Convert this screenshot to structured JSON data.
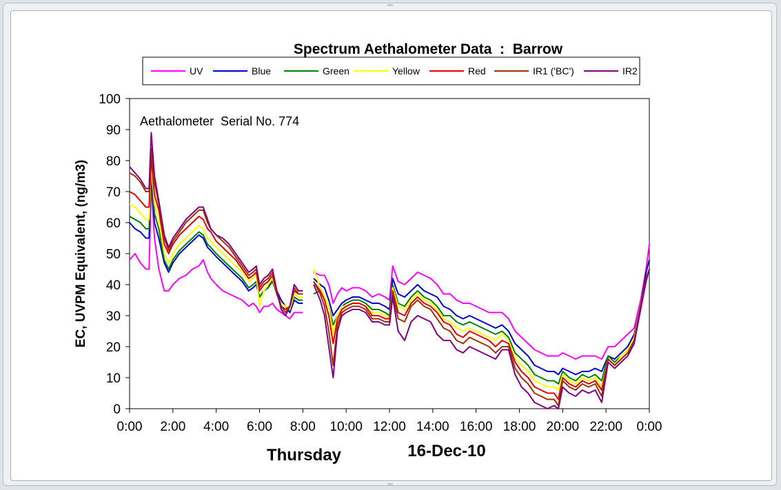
{
  "chart_data": {
    "type": "line",
    "title": "Spectrum Aethalometer Data  :  Barrow",
    "annotation": "Aethalometer  Serial No. 774",
    "ylabel": "EC, UVPM Equivalent, (ng/m3)",
    "day_label": "Thursday",
    "date_label": "16-Dec-10",
    "ylim": [
      0,
      100
    ],
    "y_ticks": [
      "0",
      "10",
      "20",
      "30",
      "40",
      "50",
      "60",
      "70",
      "80",
      "90",
      "100"
    ],
    "xlim": [
      0,
      24
    ],
    "x_ticks": [
      "0:00",
      "2:00",
      "4:00",
      "6:00",
      "8:00",
      "10:00",
      "12:00",
      "14:00",
      "16:00",
      "18:00",
      "20:00",
      "22:00",
      "0:00"
    ],
    "grid": false,
    "legend_position": "top",
    "x": [
      0,
      0.25,
      0.5,
      0.75,
      0.9,
      1.0,
      1.15,
      1.35,
      1.6,
      1.8,
      2.0,
      2.3,
      2.6,
      2.9,
      3.2,
      3.4,
      3.6,
      3.75,
      4.0,
      4.3,
      4.6,
      4.9,
      5.2,
      5.5,
      5.7,
      5.85,
      6.0,
      6.2,
      6.4,
      6.6,
      6.8,
      7.0,
      7.2,
      7.4,
      7.6,
      7.8,
      8.0,
      null,
      8.5,
      8.8,
      9.0,
      9.2,
      9.4,
      9.6,
      9.8,
      10.0,
      10.3,
      10.6,
      10.9,
      11.2,
      11.5,
      11.8,
      12.0,
      12.15,
      12.4,
      12.7,
      13.0,
      13.3,
      13.6,
      13.9,
      14.2,
      14.5,
      14.8,
      15.1,
      15.4,
      15.7,
      16.0,
      16.3,
      16.6,
      16.9,
      17.2,
      17.5,
      17.8,
      18.1,
      18.4,
      18.7,
      19.0,
      19.3,
      19.6,
      19.8,
      20.0,
      20.3,
      20.6,
      20.9,
      21.2,
      21.5,
      21.8,
      22.1,
      22.4,
      22.7,
      23.0,
      23.3,
      23.6,
      23.85,
      24.0
    ],
    "series": [
      {
        "name": "UV",
        "color": "#ff00ff",
        "values": [
          48,
          50,
          47,
          45,
          45,
          72,
          55,
          45,
          38,
          38,
          40,
          42,
          43,
          45,
          46,
          48,
          44,
          42,
          40,
          38,
          37,
          36,
          35,
          33,
          34,
          33,
          31,
          33,
          33,
          34,
          32,
          31,
          30,
          29,
          31,
          31,
          31,
          null,
          44,
          43,
          43,
          40,
          34,
          37,
          39,
          38,
          39,
          39,
          38,
          36,
          37,
          36,
          35,
          46,
          41,
          40,
          42,
          44,
          43,
          42,
          40,
          37,
          37,
          35,
          34,
          34,
          33,
          32,
          31,
          31,
          31,
          29,
          25,
          23,
          21,
          19,
          18,
          17,
          17,
          17,
          18,
          17,
          16,
          17,
          17,
          17,
          16,
          20,
          20,
          22,
          24,
          26,
          35,
          45,
          53
        ]
      },
      {
        "name": "Blue",
        "color": "#0000cc",
        "values": [
          60,
          58,
          57,
          55,
          55,
          75,
          60,
          55,
          47,
          44,
          47,
          50,
          52,
          54,
          56,
          55,
          52,
          51,
          49,
          47,
          45,
          43,
          41,
          38,
          39,
          40,
          36,
          38,
          39,
          42,
          38,
          35,
          33,
          31,
          35,
          34,
          34,
          null,
          42,
          40,
          39,
          35,
          30,
          32,
          34,
          35,
          36,
          36,
          35,
          34,
          34,
          33,
          32,
          42,
          37,
          36,
          38,
          40,
          38,
          37,
          36,
          33,
          32,
          30,
          29,
          30,
          29,
          28,
          27,
          26,
          27,
          25,
          21,
          19,
          17,
          14,
          13,
          12,
          12,
          11,
          13,
          12,
          11,
          12,
          12,
          13,
          12,
          17,
          16,
          18,
          20,
          24,
          33,
          44,
          48
        ]
      },
      {
        "name": "Green",
        "color": "#008000",
        "values": [
          62,
          61,
          60,
          58,
          58,
          77,
          63,
          58,
          48,
          45,
          48,
          51,
          53,
          55,
          57,
          56,
          53,
          52,
          50,
          48,
          46,
          44,
          42,
          39,
          40,
          41,
          36,
          38,
          39,
          41,
          37,
          34,
          33,
          32,
          36,
          35,
          35,
          null,
          37,
          38,
          36,
          33,
          27,
          30,
          33,
          34,
          35,
          35,
          34,
          32,
          32,
          31,
          30,
          40,
          34,
          33,
          36,
          38,
          36,
          35,
          33,
          30,
          30,
          28,
          27,
          28,
          27,
          26,
          25,
          24,
          25,
          23,
          18,
          16,
          14,
          11,
          10,
          9,
          9,
          8,
          12,
          10,
          9,
          11,
          10,
          11,
          9,
          17,
          15,
          17,
          19,
          23,
          33,
          42,
          45
        ]
      },
      {
        "name": "Yellow",
        "color": "#ffff00",
        "values": [
          66,
          65,
          63,
          61,
          61,
          79,
          66,
          61,
          50,
          47,
          50,
          53,
          55,
          57,
          59,
          58,
          55,
          54,
          52,
          50,
          48,
          46,
          44,
          41,
          42,
          43,
          33,
          38,
          40,
          42,
          37,
          34,
          33,
          32,
          37,
          36,
          36,
          null,
          45,
          39,
          36,
          33,
          24,
          30,
          33,
          33,
          34,
          34,
          33,
          31,
          31,
          30,
          29,
          39,
          33,
          32,
          35,
          37,
          35,
          34,
          32,
          29,
          28,
          26,
          25,
          26,
          25,
          24,
          23,
          22,
          24,
          22,
          16,
          14,
          12,
          9,
          8,
          7,
          7,
          6,
          11,
          9,
          8,
          10,
          9,
          10,
          7,
          16,
          14,
          17,
          19,
          23,
          33,
          42,
          45
        ]
      },
      {
        "name": "Red",
        "color": "#e00000",
        "values": [
          70,
          69,
          67,
          65,
          65,
          81,
          69,
          64,
          53,
          50,
          53,
          56,
          58,
          60,
          62,
          61,
          58,
          57,
          54,
          52,
          50,
          48,
          45,
          42,
          43,
          44,
          38,
          40,
          41,
          43,
          37,
          33,
          32,
          33,
          38,
          37,
          37,
          null,
          41,
          38,
          35,
          30,
          21,
          29,
          32,
          33,
          34,
          34,
          33,
          30,
          30,
          29,
          29,
          38,
          31,
          30,
          34,
          36,
          34,
          33,
          31,
          28,
          27,
          24,
          23,
          25,
          24,
          23,
          22,
          20,
          22,
          21,
          15,
          12,
          10,
          7,
          6,
          5,
          5,
          3,
          10,
          8,
          7,
          9,
          8,
          9,
          6,
          16,
          14,
          16,
          18,
          22,
          33,
          42,
          45
        ]
      },
      {
        "name": "IR1 ('BC')",
        "color": "#993300",
        "values": [
          76,
          75,
          73,
          70,
          70,
          84,
          73,
          66,
          55,
          51,
          54,
          57,
          60,
          62,
          64,
          64,
          60,
          58,
          56,
          54,
          52,
          49,
          46,
          43,
          44,
          45,
          39,
          41,
          42,
          44,
          38,
          33,
          31,
          33,
          39,
          37,
          37,
          null,
          41,
          37,
          33,
          25,
          14,
          27,
          31,
          32,
          33,
          33,
          32,
          29,
          29,
          28,
          28,
          37,
          29,
          28,
          33,
          35,
          33,
          32,
          29,
          26,
          25,
          22,
          21,
          23,
          22,
          21,
          20,
          18,
          20,
          20,
          13,
          10,
          8,
          5,
          4,
          3,
          3,
          1,
          9,
          7,
          6,
          8,
          7,
          8,
          4,
          16,
          14,
          16,
          18,
          22,
          33,
          42,
          45
        ]
      },
      {
        "name": "IR2",
        "color": "#800080",
        "values": [
          78,
          76,
          74,
          71,
          71,
          89,
          75,
          67,
          56,
          52,
          55,
          58,
          61,
          63,
          65,
          65,
          61,
          58,
          56,
          55,
          53,
          50,
          47,
          44,
          45,
          46,
          40,
          42,
          43,
          45,
          38,
          32,
          30,
          33,
          40,
          38,
          38,
          null,
          40,
          35,
          30,
          20,
          10,
          25,
          30,
          31,
          32,
          32,
          31,
          28,
          28,
          27,
          27,
          36,
          25,
          22,
          28,
          30,
          29,
          28,
          24,
          22,
          22,
          19,
          18,
          20,
          19,
          18,
          17,
          16,
          19,
          19,
          11,
          7,
          5,
          2,
          1,
          0,
          1,
          0,
          7,
          5,
          4,
          6,
          5,
          6,
          2,
          15,
          13,
          15,
          17,
          21,
          32,
          41,
          45
        ]
      }
    ]
  }
}
